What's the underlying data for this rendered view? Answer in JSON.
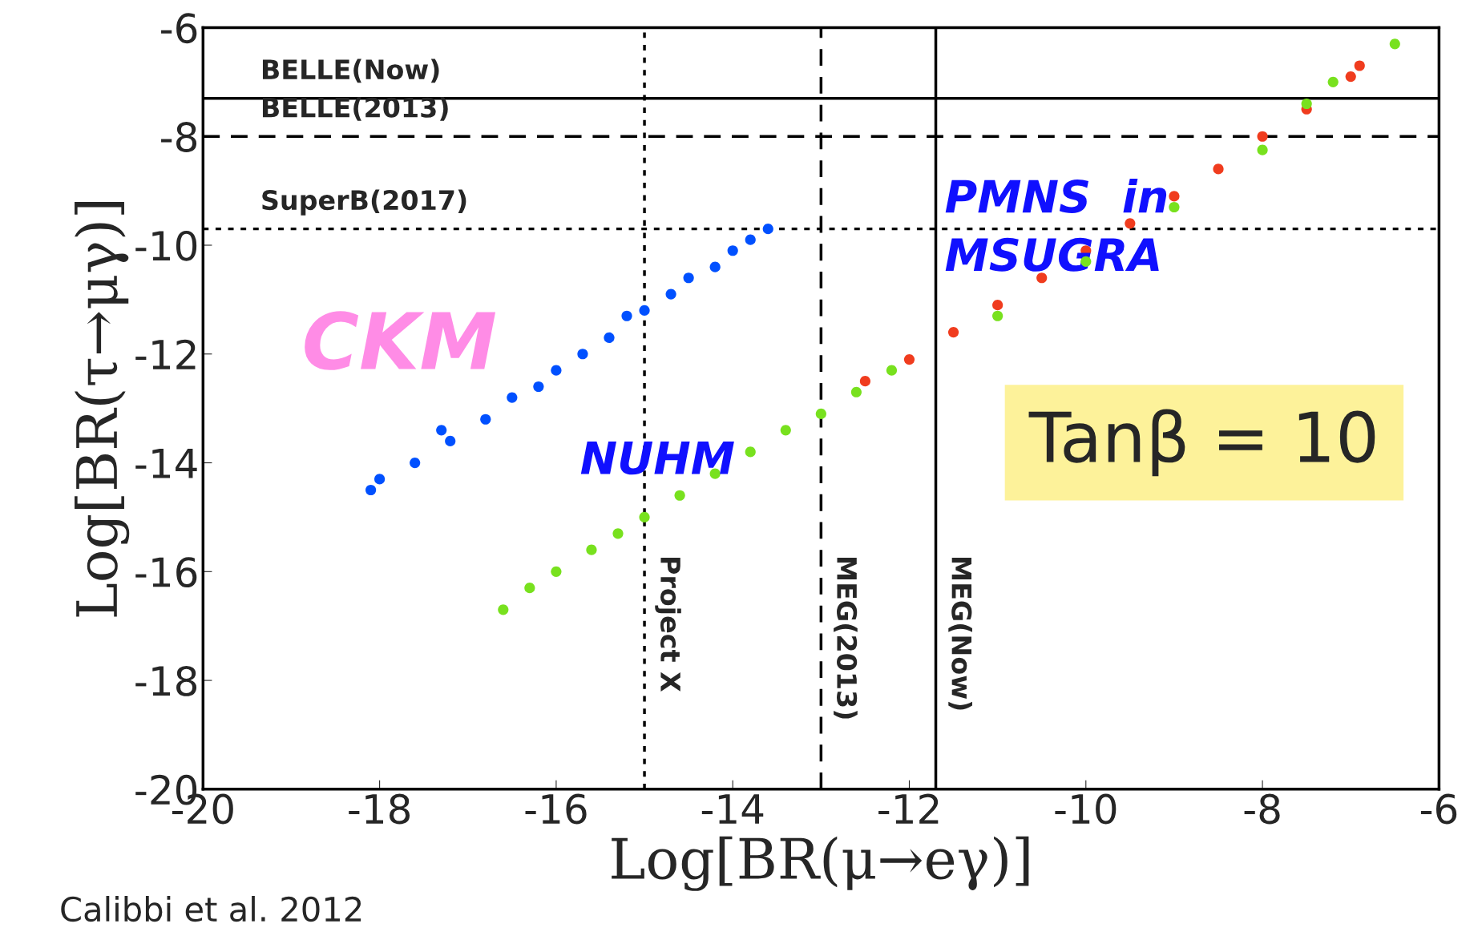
{
  "chart_data": {
    "type": "scatter",
    "xlabel": "Log[BR(μ→eγ)]",
    "ylabel": "Log[BR(τ→μγ)]",
    "xlim": [
      -20,
      -6
    ],
    "ylim": [
      -20,
      -6
    ],
    "xticks": [
      -20,
      -18,
      -16,
      -14,
      -12,
      -10,
      -8,
      -6
    ],
    "yticks": [
      -20,
      -18,
      -16,
      -14,
      -12,
      -10,
      -8,
      -6
    ],
    "grid": false,
    "marker": "circle",
    "series": [
      {
        "name": "CKM",
        "color": "#0050ff",
        "x": [
          -18.1,
          -18.0,
          -17.6,
          -17.3,
          -17.2,
          -16.8,
          -16.5,
          -16.2,
          -16.0,
          -15.7,
          -15.4,
          -15.2,
          -15.0,
          -14.7,
          -14.5,
          -14.2,
          -14.0,
          -13.8,
          -13.6
        ],
        "values": [
          -14.5,
          -14.3,
          -14.0,
          -13.4,
          -13.6,
          -13.2,
          -12.8,
          -12.6,
          -12.3,
          -12.0,
          -11.7,
          -11.3,
          -11.2,
          -10.9,
          -10.6,
          -10.4,
          -10.1,
          -9.9,
          -9.7
        ]
      },
      {
        "name": "PMNS  in\nMSUGRA",
        "color": "#f03c1e",
        "x": [
          -12.5,
          -12.0,
          -11.5,
          -11.0,
          -10.5,
          -10.0,
          -9.5,
          -9.0,
          -8.5,
          -8.0,
          -7.5,
          -7.0,
          -6.9
        ],
        "values": [
          -12.5,
          -12.1,
          -11.6,
          -11.1,
          -10.6,
          -10.1,
          -9.6,
          -9.1,
          -8.6,
          -8.0,
          -7.5,
          -6.9,
          -6.7
        ]
      },
      {
        "name": "NUHM",
        "color": "#78e11e",
        "x": [
          -16.6,
          -16.3,
          -16.0,
          -15.6,
          -15.3,
          -15.0,
          -14.6,
          -14.2,
          -13.8,
          -13.4,
          -13.0,
          -12.6,
          -12.2,
          -11.0,
          -10.0,
          -9.0,
          -8.0,
          -7.5,
          -7.2,
          -6.5
        ],
        "values": [
          -16.7,
          -16.3,
          -16.0,
          -15.6,
          -15.3,
          -15.0,
          -14.6,
          -14.2,
          -13.8,
          -13.4,
          -13.1,
          -12.7,
          -12.3,
          -11.3,
          -10.3,
          -9.3,
          -8.25,
          -7.4,
          -7.0,
          -6.3
        ]
      }
    ],
    "ref_lines": [
      {
        "axis": "y",
        "value": -7.3,
        "label": "BELLE(Now)",
        "line_style": "solid",
        "color": "#000000"
      },
      {
        "axis": "y",
        "value": -8,
        "label": "BELLE(2013)",
        "line_style": "dashed",
        "color": "#000000"
      },
      {
        "axis": "y",
        "value": -9.7,
        "label": "SuperB(2017)",
        "line_style": "dotted",
        "color": "#000000"
      },
      {
        "axis": "x",
        "value": -15,
        "label": "Project X",
        "line_style": "dotted",
        "color": "#000000"
      },
      {
        "axis": "x",
        "value": -13,
        "label": "MEG(2013)",
        "line_style": "dashed",
        "color": "#000000"
      },
      {
        "axis": "x",
        "value": -11.7,
        "label": "MEG(Now)",
        "line_style": "solid",
        "color": "#000000"
      }
    ],
    "annotations": [
      "Tanβ = 10",
      "Calibbi et al. 2012"
    ]
  }
}
